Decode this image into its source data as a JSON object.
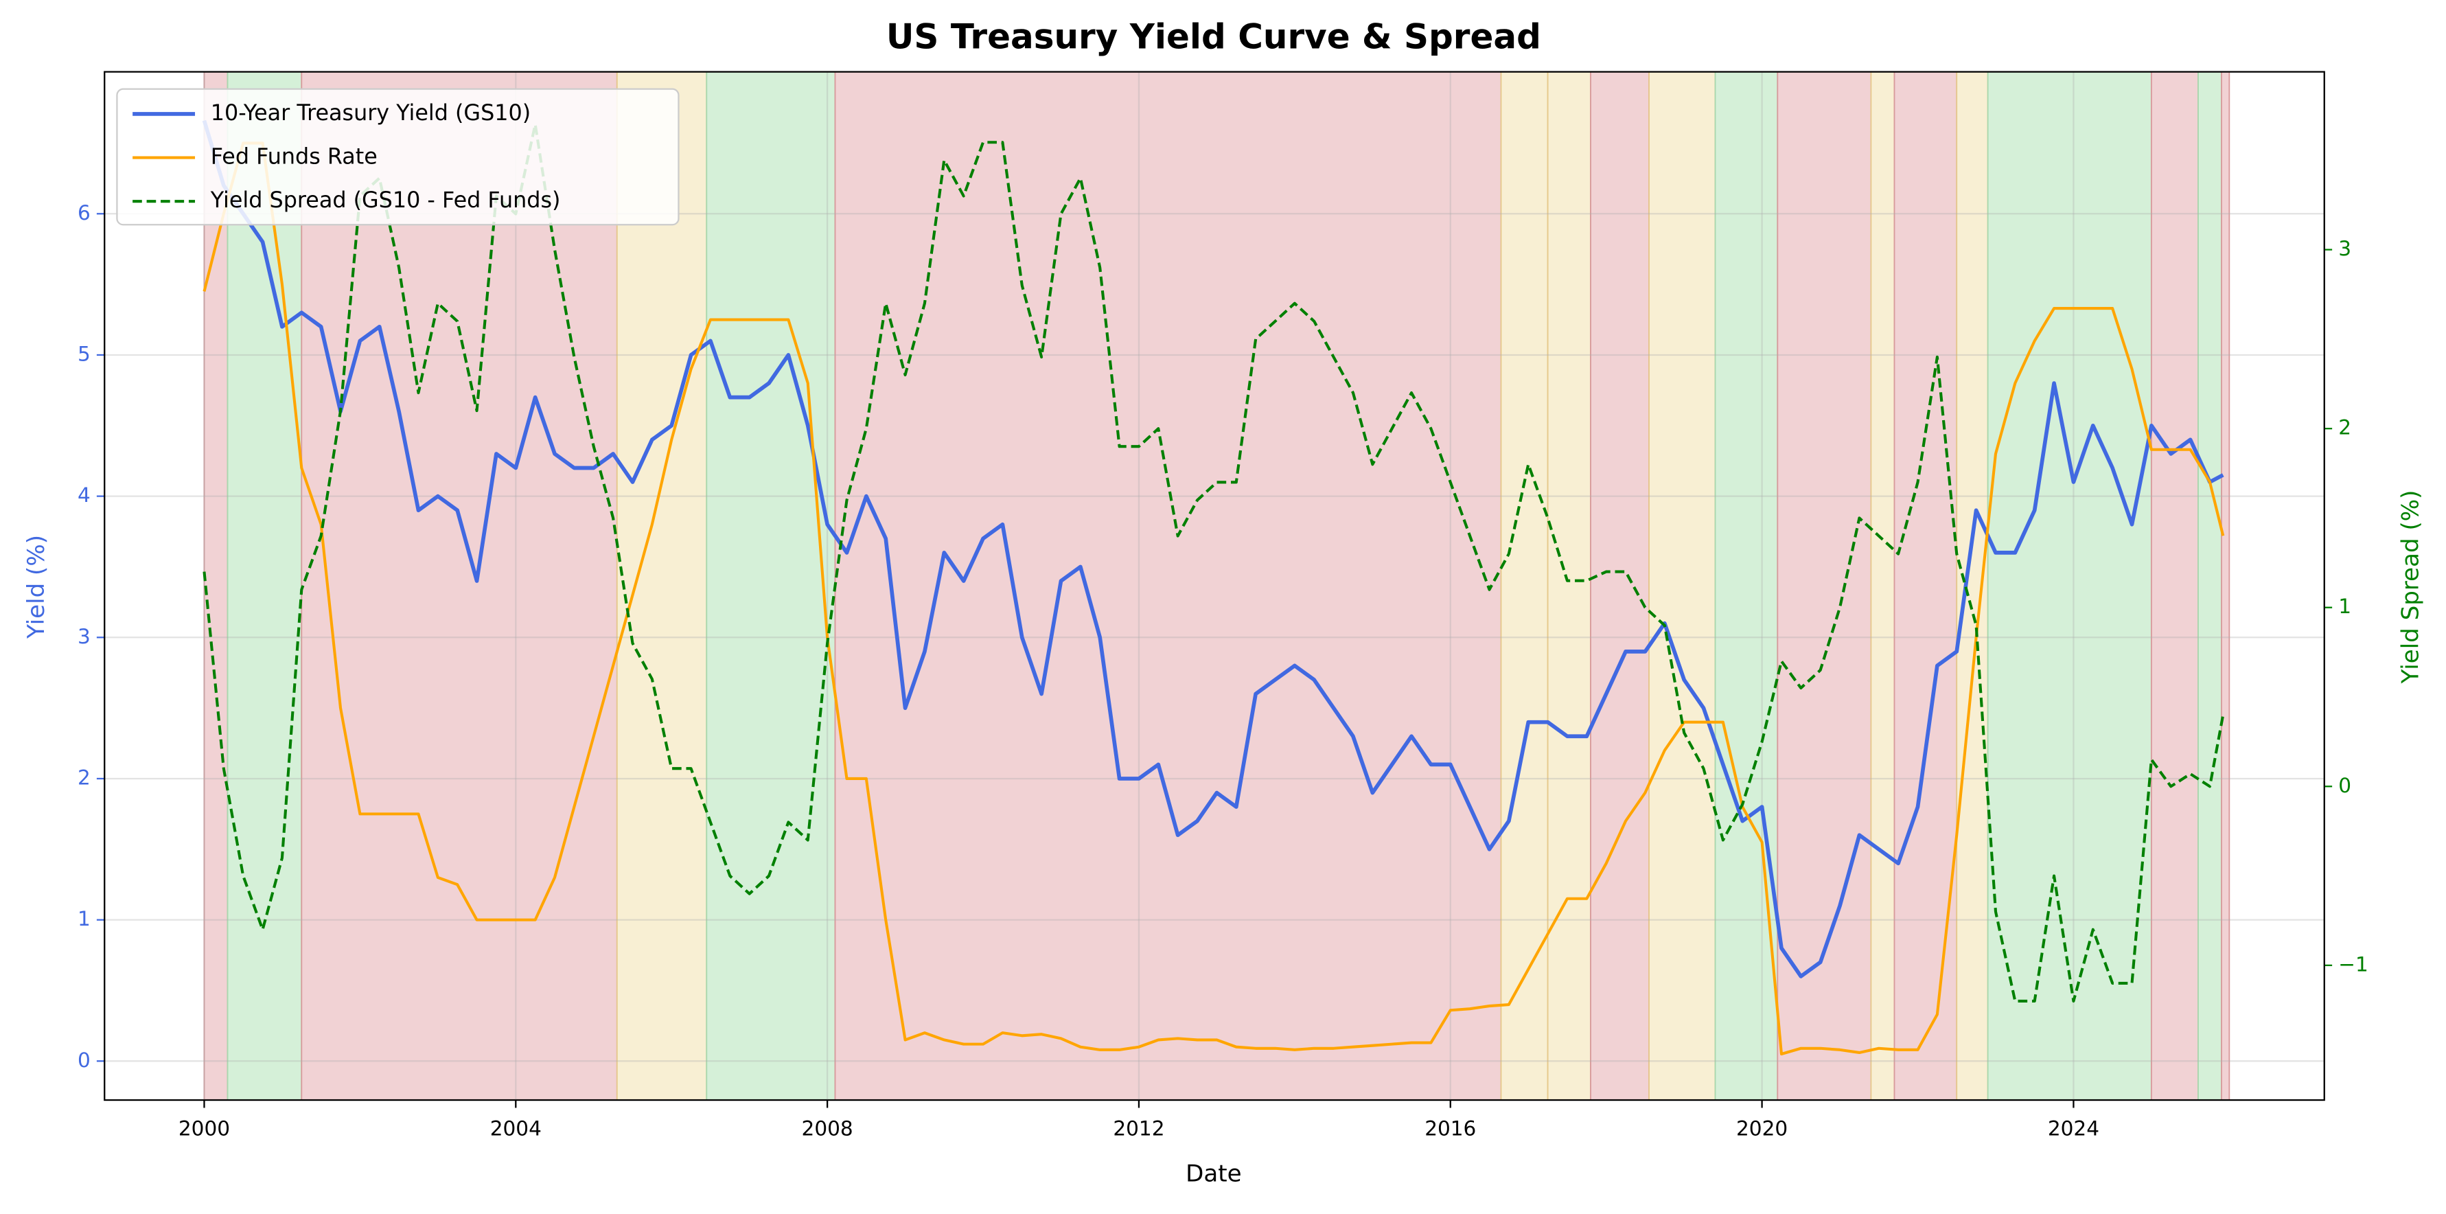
{
  "chart_data": {
    "type": "line",
    "title": "US Treasury Yield Curve & Spread",
    "xlabel": "Date",
    "ylabel": "Yield (%)",
    "y2label": "Yield Spread (%)",
    "legend": "upper left",
    "grid": true,
    "xlim": [
      1998.72,
      2027.22
    ],
    "xticks": [
      2000,
      2004,
      2008,
      2012,
      2016,
      2020,
      2024
    ],
    "ylim": [
      -0.276,
      7.005
    ],
    "yticks": [
      0,
      1,
      2,
      3,
      4,
      5,
      6
    ],
    "y2lim": [
      -1.753,
      3.994
    ],
    "y2ticks": [
      {
        "value": -1,
        "label": "−1"
      },
      0,
      1,
      2,
      3
    ],
    "ycolor": "#4169e1",
    "y2color": "#008000",
    "regions": [
      {
        "start": 2000.0,
        "end": 2000.3,
        "color": "#f0d0d2"
      },
      {
        "start": 2000.3,
        "end": 2001.25,
        "color": "#d3efd6"
      },
      {
        "start": 2001.25,
        "end": 2005.3,
        "color": "#f0d0d2"
      },
      {
        "start": 2005.3,
        "end": 2006.45,
        "color": "#f8eed1"
      },
      {
        "start": 2006.45,
        "end": 2008.1,
        "color": "#d3efd6"
      },
      {
        "start": 2008.1,
        "end": 2016.65,
        "color": "#f0d0d2"
      },
      {
        "start": 2016.65,
        "end": 2017.25,
        "color": "#f8eed1"
      },
      {
        "start": 2017.25,
        "end": 2017.8,
        "color": "#f8eed1"
      },
      {
        "start": 2017.8,
        "end": 2018.55,
        "color": "#f0d0d2"
      },
      {
        "start": 2018.55,
        "end": 2019.4,
        "color": "#f8eed1"
      },
      {
        "start": 2019.4,
        "end": 2020.2,
        "color": "#d3efd6"
      },
      {
        "start": 2020.2,
        "end": 2021.4,
        "color": "#f0d0d2"
      },
      {
        "start": 2021.4,
        "end": 2021.7,
        "color": "#f8eed1"
      },
      {
        "start": 2021.7,
        "end": 2022.5,
        "color": "#f0d0d2"
      },
      {
        "start": 2022.5,
        "end": 2022.9,
        "color": "#f8eed1"
      },
      {
        "start": 2022.9,
        "end": 2025.0,
        "color": "#d3efd6"
      },
      {
        "start": 2025.0,
        "end": 2025.6,
        "color": "#f0d0d2"
      },
      {
        "start": 2025.6,
        "end": 2025.9,
        "color": "#d3efd6"
      },
      {
        "start": 2025.9,
        "end": 2026.0,
        "color": "#f0d0d2"
      }
    ],
    "x": [
      2000.0,
      2000.25,
      2000.5,
      2000.75,
      2001.0,
      2001.25,
      2001.5,
      2001.75,
      2002.0,
      2002.25,
      2002.5,
      2002.75,
      2003.0,
      2003.25,
      2003.5,
      2003.75,
      2004.0,
      2004.25,
      2004.5,
      2004.75,
      2005.0,
      2005.25,
      2005.5,
      2005.75,
      2006.0,
      2006.25,
      2006.5,
      2006.75,
      2007.0,
      2007.25,
      2007.5,
      2007.75,
      2008.0,
      2008.25,
      2008.5,
      2008.75,
      2009.0,
      2009.25,
      2009.5,
      2009.75,
      2010.0,
      2010.25,
      2010.5,
      2010.75,
      2011.0,
      2011.25,
      2011.5,
      2011.75,
      2012.0,
      2012.25,
      2012.5,
      2012.75,
      2013.0,
      2013.25,
      2013.5,
      2013.75,
      2014.0,
      2014.25,
      2014.5,
      2014.75,
      2015.0,
      2015.25,
      2015.5,
      2015.75,
      2016.0,
      2016.25,
      2016.5,
      2016.75,
      2017.0,
      2017.25,
      2017.5,
      2017.75,
      2018.0,
      2018.25,
      2018.5,
      2018.75,
      2019.0,
      2019.25,
      2019.5,
      2019.75,
      2020.0,
      2020.25,
      2020.5,
      2020.75,
      2021.0,
      2021.25,
      2021.5,
      2021.75,
      2022.0,
      2022.25,
      2022.5,
      2022.75,
      2023.0,
      2023.25,
      2023.5,
      2023.75,
      2024.0,
      2024.25,
      2024.5,
      2024.75,
      2025.0,
      2025.25,
      2025.5,
      2025.75,
      2025.92
    ],
    "series": [
      {
        "name": "10-Year Treasury Yield (GS10)",
        "color": "#4169e1",
        "width": 2.5,
        "style": "solid",
        "axis": "y",
        "values": [
          6.66,
          6.2,
          6.0,
          5.8,
          5.2,
          5.3,
          5.2,
          4.6,
          5.1,
          5.2,
          4.6,
          3.9,
          4.0,
          3.9,
          3.4,
          4.3,
          4.2,
          4.7,
          4.3,
          4.2,
          4.2,
          4.3,
          4.1,
          4.4,
          4.5,
          5.0,
          5.1,
          4.7,
          4.7,
          4.8,
          5.0,
          4.5,
          3.8,
          3.6,
          4.0,
          3.7,
          2.5,
          2.9,
          3.6,
          3.4,
          3.7,
          3.8,
          3.0,
          2.6,
          3.4,
          3.5,
          3.0,
          2.0,
          2.0,
          2.1,
          1.6,
          1.7,
          1.9,
          1.8,
          2.6,
          2.7,
          2.8,
          2.7,
          2.5,
          2.3,
          1.9,
          2.1,
          2.3,
          2.1,
          2.1,
          1.8,
          1.5,
          1.7,
          2.4,
          2.4,
          2.3,
          2.3,
          2.6,
          2.9,
          2.9,
          3.1,
          2.7,
          2.5,
          2.1,
          1.7,
          1.8,
          0.8,
          0.6,
          0.7,
          1.1,
          1.6,
          1.5,
          1.4,
          1.8,
          2.8,
          2.9,
          3.9,
          3.6,
          3.6,
          3.9,
          4.8,
          4.1,
          4.5,
          4.2,
          3.8,
          4.5,
          4.3,
          4.4,
          4.1,
          4.15
        ]
      },
      {
        "name": "Fed Funds Rate",
        "color": "#ffa500",
        "width": 1.8,
        "style": "solid",
        "axis": "y",
        "values": [
          5.45,
          6.0,
          6.5,
          6.5,
          5.5,
          4.2,
          3.8,
          2.5,
          1.75,
          1.75,
          1.75,
          1.75,
          1.3,
          1.25,
          1.0,
          1.0,
          1.0,
          1.0,
          1.3,
          1.8,
          2.3,
          2.8,
          3.3,
          3.8,
          4.4,
          4.9,
          5.25,
          5.25,
          5.25,
          5.25,
          5.25,
          4.8,
          3.0,
          2.0,
          2.0,
          1.0,
          0.15,
          0.2,
          0.15,
          0.12,
          0.12,
          0.2,
          0.18,
          0.19,
          0.16,
          0.1,
          0.08,
          0.08,
          0.1,
          0.15,
          0.16,
          0.15,
          0.15,
          0.1,
          0.09,
          0.09,
          0.08,
          0.09,
          0.09,
          0.1,
          0.11,
          0.12,
          0.13,
          0.13,
          0.36,
          0.37,
          0.39,
          0.4,
          0.65,
          0.9,
          1.15,
          1.15,
          1.4,
          1.7,
          1.9,
          2.2,
          2.4,
          2.4,
          2.4,
          1.8,
          1.55,
          0.05,
          0.09,
          0.09,
          0.08,
          0.06,
          0.09,
          0.08,
          0.08,
          0.33,
          1.6,
          3.0,
          4.3,
          4.8,
          5.1,
          5.33,
          5.33,
          5.33,
          5.33,
          4.9,
          4.33,
          4.33,
          4.33,
          4.1,
          3.72
        ]
      },
      {
        "name": "Yield Spread (GS10 - Fed Funds)",
        "color": "#008000",
        "width": 1.8,
        "style": "dashed",
        "axis": "y2",
        "values": [
          1.2,
          0.1,
          -0.5,
          -0.8,
          -0.4,
          1.1,
          1.4,
          2.1,
          3.3,
          3.4,
          2.9,
          2.2,
          2.7,
          2.6,
          2.1,
          3.3,
          3.2,
          3.7,
          3.0,
          2.4,
          1.9,
          1.5,
          0.8,
          0.6,
          0.1,
          0.1,
          -0.2,
          -0.5,
          -0.6,
          -0.5,
          -0.2,
          -0.3,
          0.8,
          1.6,
          2.0,
          2.7,
          2.3,
          2.7,
          3.5,
          3.3,
          3.6,
          3.6,
          2.8,
          2.4,
          3.2,
          3.4,
          2.9,
          1.9,
          1.9,
          2.0,
          1.4,
          1.6,
          1.7,
          1.7,
          2.5,
          2.6,
          2.7,
          2.6,
          2.4,
          2.2,
          1.8,
          2.0,
          2.2,
          2.0,
          1.7,
          1.4,
          1.1,
          1.3,
          1.8,
          1.5,
          1.15,
          1.15,
          1.2,
          1.2,
          1.0,
          0.9,
          0.3,
          0.1,
          -0.3,
          -0.1,
          0.25,
          0.7,
          0.55,
          0.65,
          1.0,
          1.5,
          1.4,
          1.3,
          1.7,
          2.4,
          1.3,
          0.9,
          -0.7,
          -1.2,
          -1.2,
          -0.5,
          -1.2,
          -0.8,
          -1.1,
          -1.1,
          0.15,
          0.0,
          0.07,
          0.0,
          0.4
        ]
      }
    ]
  }
}
